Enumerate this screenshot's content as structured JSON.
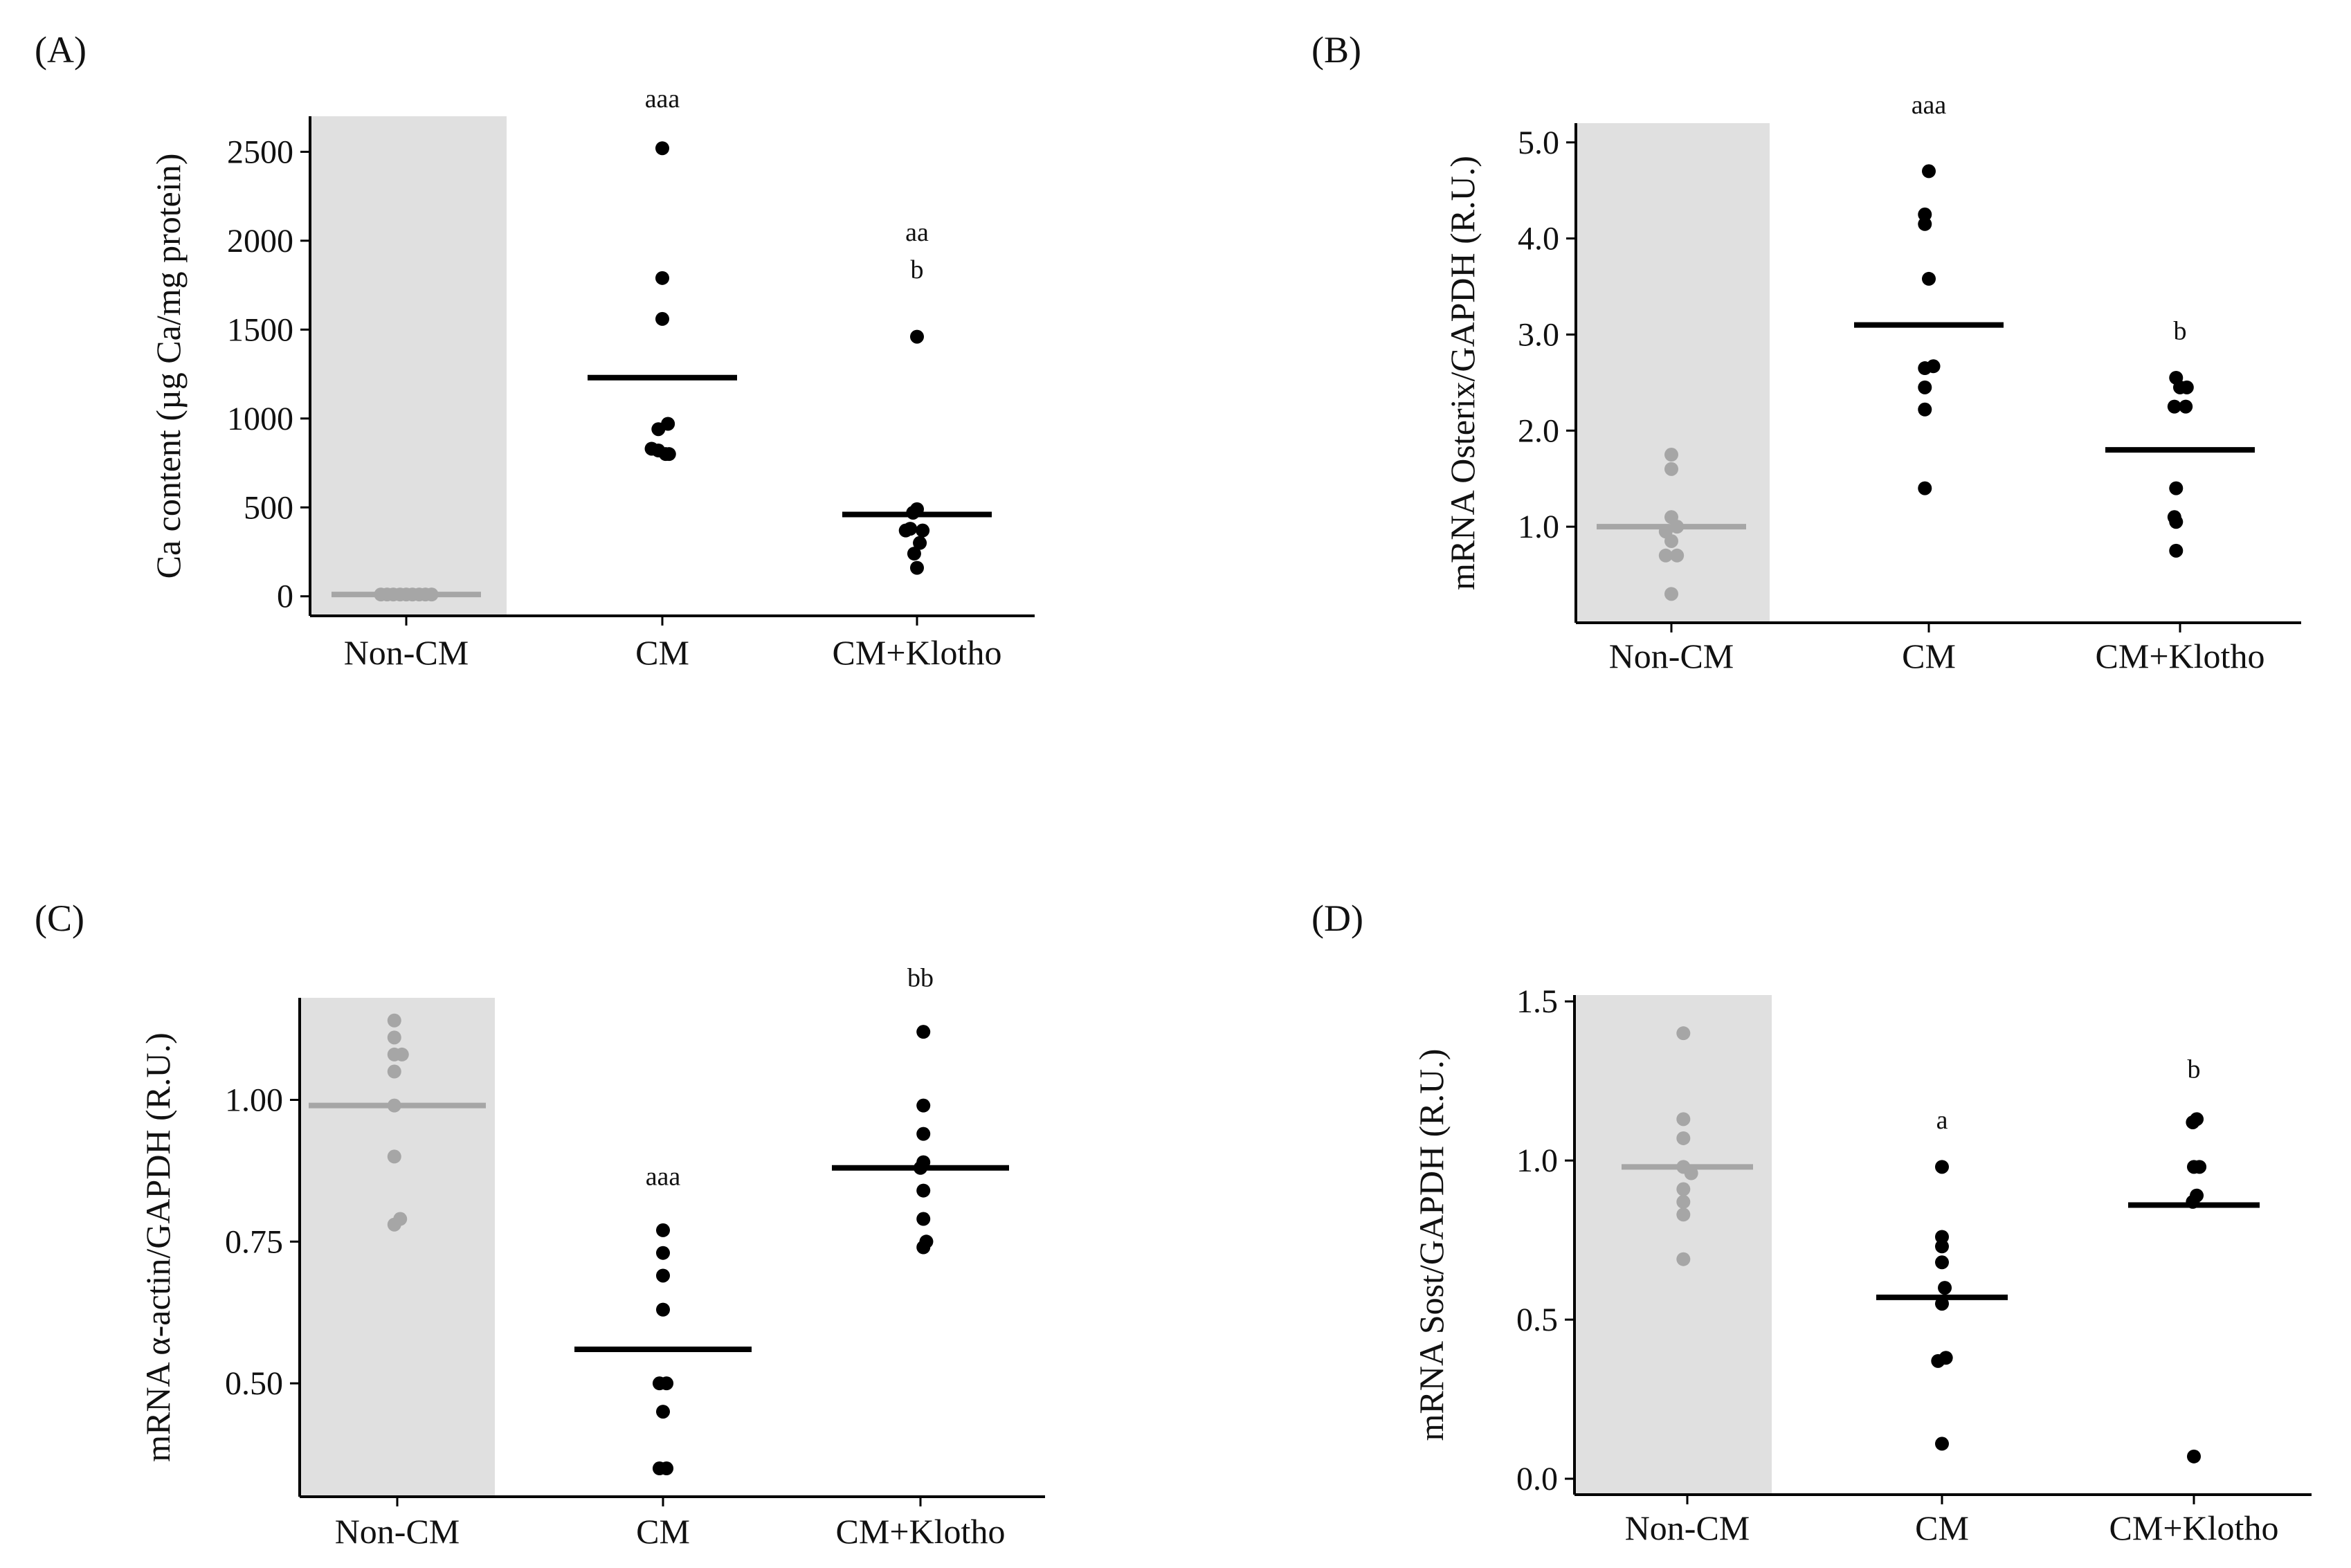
{
  "colors": {
    "shade": "#e0e0e0",
    "control": "#a6a6a6",
    "treated": "#000000",
    "axis": "#000000"
  },
  "chart_data": [
    {
      "type": "scatter",
      "panel_label": "(A)",
      "ylabel": "Ca content (µg Ca/mg protein)",
      "ylim": [
        -110,
        2700
      ],
      "yticks": [
        0,
        500,
        1000,
        1500,
        2000,
        2500
      ],
      "ytick_labels": [
        "0",
        "500",
        "1000",
        "1500",
        "2000",
        "2500"
      ],
      "categories": [
        "Non-CM",
        "CM",
        "CM+Klotho"
      ],
      "series": [
        {
          "name": "Non-CM",
          "points": [
            [
              -0.45,
              10
            ],
            [
              -0.34,
              10
            ],
            [
              -0.23,
              10
            ],
            [
              -0.11,
              10
            ],
            [
              0,
              10
            ],
            [
              0.11,
              10
            ],
            [
              0.23,
              10
            ],
            [
              0.34,
              10
            ],
            [
              0.45,
              10
            ]
          ],
          "mean": 10
        },
        {
          "name": "CM",
          "points": [
            [
              0,
              2520
            ],
            [
              0,
              1790
            ],
            [
              0,
              1560
            ],
            [
              0.1,
              970
            ],
            [
              -0.07,
              940
            ],
            [
              -0.19,
              830
            ],
            [
              -0.07,
              820
            ],
            [
              0.06,
              800
            ],
            [
              0.12,
              800
            ]
          ],
          "mean": 1230
        },
        {
          "name": "CM+Klotho",
          "points": [
            [
              0,
              1460
            ],
            [
              0,
              490
            ],
            [
              -0.07,
              470
            ],
            [
              -0.12,
              380
            ],
            [
              -0.2,
              370
            ],
            [
              0.1,
              370
            ],
            [
              0.05,
              300
            ],
            [
              -0.05,
              240
            ],
            [
              0,
              160
            ]
          ],
          "mean": 460
        }
      ],
      "annotations": [
        {
          "category": "CM",
          "lines": [
            "aaa"
          ],
          "y": 2750
        },
        {
          "category": "CM+Klotho",
          "lines": [
            "aa",
            "b"
          ],
          "y": 2000
        }
      ]
    },
    {
      "type": "scatter",
      "panel_label": "(B)",
      "ylabel": "mRNA Osterix/GAPDH (R.U.)",
      "ylim": [
        0,
        5.2
      ],
      "yticks": [
        1.0,
        2.0,
        3.0,
        4.0,
        5.0
      ],
      "ytick_labels": [
        "1.0",
        "2.0",
        "3.0",
        "4.0",
        "5.0"
      ],
      "categories": [
        "Non-CM",
        "CM",
        "CM+Klotho"
      ],
      "series": [
        {
          "name": "Non-CM",
          "points": [
            [
              0,
              1.75
            ],
            [
              0,
              1.6
            ],
            [
              0,
              1.1
            ],
            [
              0.1,
              1.0
            ],
            [
              -0.1,
              0.95
            ],
            [
              0,
              0.85
            ],
            [
              -0.1,
              0.7
            ],
            [
              0.1,
              0.7
            ],
            [
              0,
              0.3
            ]
          ],
          "mean": 1.0
        },
        {
          "name": "CM",
          "points": [
            [
              0,
              4.7
            ],
            [
              -0.07,
              4.25
            ],
            [
              -0.07,
              4.15
            ],
            [
              0,
              3.58
            ],
            [
              -0.07,
              2.65
            ],
            [
              0.08,
              2.67
            ],
            [
              -0.07,
              2.45
            ],
            [
              -0.07,
              2.22
            ],
            [
              -0.07,
              1.4
            ]
          ],
          "mean": 3.1
        },
        {
          "name": "CM+Klotho",
          "points": [
            [
              -0.07,
              2.55
            ],
            [
              0,
              2.45
            ],
            [
              -0.1,
              2.25
            ],
            [
              0.1,
              2.25
            ],
            [
              0.12,
              2.45
            ],
            [
              -0.07,
              1.4
            ],
            [
              -0.07,
              1.05
            ],
            [
              -0.1,
              1.1
            ],
            [
              -0.07,
              0.75
            ]
          ],
          "mean": 1.8
        }
      ],
      "annotations": [
        {
          "category": "CM",
          "lines": [
            "aaa"
          ],
          "y": 5.3
        },
        {
          "category": "CM+Klotho",
          "lines": [
            "b"
          ],
          "y": 2.95
        }
      ]
    },
    {
      "type": "scatter",
      "panel_label": "(C)",
      "ylabel": "mRNA α-actin/GAPDH (R.U.)",
      "ylim": [
        0.3,
        1.18
      ],
      "yticks": [
        0.5,
        0.75,
        1.0
      ],
      "ytick_labels": [
        "0.50",
        "0.75",
        "1.00"
      ],
      "categories": [
        "Non-CM",
        "CM",
        "CM+Klotho"
      ],
      "series": [
        {
          "name": "Non-CM",
          "points": [
            [
              -0.05,
              1.14
            ],
            [
              -0.05,
              1.11
            ],
            [
              -0.05,
              1.08
            ],
            [
              0.08,
              1.08
            ],
            [
              -0.05,
              1.05
            ],
            [
              -0.05,
              0.99
            ],
            [
              -0.05,
              0.9
            ],
            [
              -0.05,
              0.78
            ],
            [
              0.05,
              0.79
            ]
          ],
          "mean": 0.99
        },
        {
          "name": "CM",
          "points": [
            [
              0,
              0.77
            ],
            [
              0,
              0.73
            ],
            [
              0,
              0.69
            ],
            [
              0,
              0.63
            ],
            [
              0.06,
              0.5
            ],
            [
              -0.06,
              0.5
            ],
            [
              0,
              0.45
            ],
            [
              -0.06,
              0.35
            ],
            [
              0.06,
              0.35
            ]
          ],
          "mean": 0.56
        },
        {
          "name": "CM+Klotho",
          "points": [
            [
              0.05,
              1.12
            ],
            [
              0.05,
              0.99
            ],
            [
              0.05,
              0.94
            ],
            [
              0.05,
              0.89
            ],
            [
              0,
              0.88
            ],
            [
              0.05,
              0.84
            ],
            [
              0.05,
              0.79
            ],
            [
              0.1,
              0.75
            ],
            [
              0.05,
              0.74
            ]
          ],
          "mean": 0.88
        }
      ],
      "annotations": [
        {
          "category": "CM",
          "lines": [
            "aaa"
          ],
          "y": 0.85
        },
        {
          "category": "CM+Klotho",
          "lines": [
            "bb"
          ],
          "y": 1.2
        }
      ]
    },
    {
      "type": "scatter",
      "panel_label": "(D)",
      "ylabel": "mRNA Sost/GAPDH (R.U.)",
      "ylim": [
        -0.05,
        1.52
      ],
      "yticks": [
        0.0,
        0.5,
        1.0,
        1.5
      ],
      "ytick_labels": [
        "0.0",
        "0.5",
        "1.0",
        "1.5"
      ],
      "categories": [
        "Non-CM",
        "CM",
        "CM+Klotho"
      ],
      "series": [
        {
          "name": "Non-CM",
          "points": [
            [
              -0.07,
              1.4
            ],
            [
              -0.07,
              1.13
            ],
            [
              -0.07,
              1.07
            ],
            [
              -0.07,
              0.98
            ],
            [
              0.07,
              0.96
            ],
            [
              -0.07,
              0.91
            ],
            [
              -0.07,
              0.87
            ],
            [
              -0.07,
              0.83
            ],
            [
              -0.07,
              0.69
            ]
          ],
          "mean": 0.98
        },
        {
          "name": "CM",
          "points": [
            [
              0,
              0.98
            ],
            [
              0,
              0.76
            ],
            [
              0,
              0.73
            ],
            [
              0,
              0.68
            ],
            [
              0,
              0.55
            ],
            [
              -0.07,
              0.37
            ],
            [
              0.07,
              0.38
            ],
            [
              0,
              0.11
            ],
            [
              0.05,
              0.6
            ]
          ],
          "mean": 0.57
        },
        {
          "name": "CM+Klotho",
          "points": [
            [
              0.05,
              1.13
            ],
            [
              -0.02,
              1.12
            ],
            [
              0,
              0.98
            ],
            [
              0.1,
              0.98
            ],
            [
              -0.02,
              0.87
            ],
            [
              0.05,
              0.89
            ],
            [
              0,
              0.07
            ]
          ],
          "mean": 0.86
        }
      ],
      "annotations": [
        {
          "category": "CM",
          "lines": [
            "a"
          ],
          "y": 1.1
        },
        {
          "category": "CM+Klotho",
          "lines": [
            "b"
          ],
          "y": 1.26
        }
      ]
    }
  ]
}
